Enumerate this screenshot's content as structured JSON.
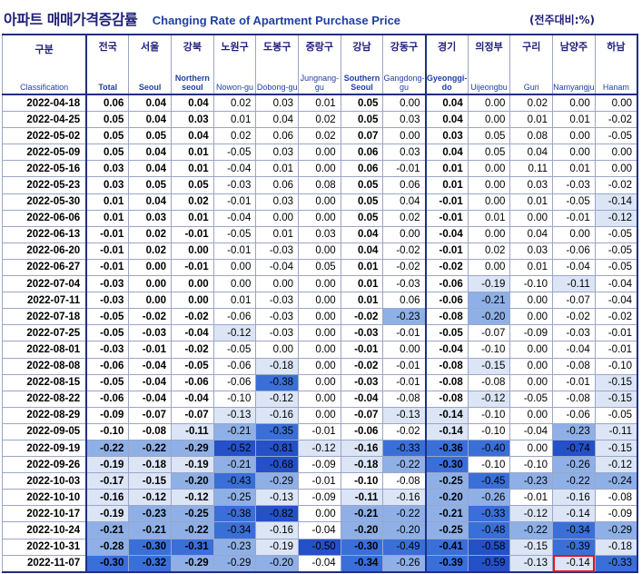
{
  "title_ko": "아파트 매매가격증감률",
  "title_en": "Changing Rate of Apartment Purchase Price",
  "unit": "(전주대비:%)",
  "chart_data": {
    "type": "table",
    "columns": [
      {
        "ko": "구분",
        "en": "Classification"
      },
      {
        "ko": "전국",
        "en": "Total"
      },
      {
        "ko": "서울",
        "en": "Seoul"
      },
      {
        "ko": "강북",
        "en": "Northern seoul"
      },
      {
        "ko": "노원구",
        "en": "Nowon-gu"
      },
      {
        "ko": "도봉구",
        "en": "Dobong-gu"
      },
      {
        "ko": "중랑구",
        "en": "Jungnang-gu"
      },
      {
        "ko": "강남",
        "en": "Southern Seoul"
      },
      {
        "ko": "강동구",
        "en": "Gangdong-gu"
      },
      {
        "ko": "경기",
        "en": "Gyeonggi-do"
      },
      {
        "ko": "의정부",
        "en": "Uijeongbu"
      },
      {
        "ko": "구리",
        "en": "Guri"
      },
      {
        "ko": "남양주",
        "en": "Namyangju"
      },
      {
        "ko": "하남",
        "en": "Hanam"
      }
    ],
    "rows": [
      {
        "date": "2022-04-18",
        "values": [
          "0.06",
          "0.04",
          "0.04",
          "0.02",
          "0.03",
          "0.01",
          "0.05",
          "0.00",
          "0.04",
          "0.00",
          "0.02",
          "0.00",
          "0.00"
        ]
      },
      {
        "date": "2022-04-25",
        "values": [
          "0.05",
          "0.04",
          "0.03",
          "0.01",
          "0.04",
          "0.02",
          "0.05",
          "0.03",
          "0.04",
          "0.00",
          "0.01",
          "0.01",
          "-0.02"
        ]
      },
      {
        "date": "2022-05-02",
        "values": [
          "0.05",
          "0.05",
          "0.04",
          "0.02",
          "0.06",
          "0.02",
          "0.07",
          "0.00",
          "0.03",
          "0.05",
          "0.08",
          "0.00",
          "-0.05"
        ]
      },
      {
        "date": "2022-05-09",
        "values": [
          "0.05",
          "0.04",
          "0.01",
          "-0.05",
          "0.03",
          "0.00",
          "0.06",
          "0.03",
          "0.04",
          "0.05",
          "0.04",
          "0.00",
          "0.00"
        ]
      },
      {
        "date": "2022-05-16",
        "values": [
          "0.03",
          "0.04",
          "0.01",
          "-0.04",
          "0.01",
          "0.00",
          "0.06",
          "-0.01",
          "0.01",
          "0.00",
          "0.11",
          "0.01",
          "0.00"
        ]
      },
      {
        "date": "2022-05-23",
        "values": [
          "0.03",
          "0.05",
          "0.05",
          "-0.03",
          "0.06",
          "0.08",
          "0.05",
          "0.06",
          "0.01",
          "0.00",
          "0.03",
          "-0.03",
          "-0.02"
        ]
      },
      {
        "date": "2022-05-30",
        "values": [
          "0.01",
          "0.04",
          "0.02",
          "-0.01",
          "0.03",
          "0.00",
          "0.05",
          "0.04",
          "-0.01",
          "0.00",
          "0.01",
          "-0.05",
          "-0.14"
        ]
      },
      {
        "date": "2022-06-06",
        "values": [
          "0.01",
          "0.03",
          "0.01",
          "-0.04",
          "0.00",
          "0.00",
          "0.05",
          "0.02",
          "-0.01",
          "0.01",
          "0.00",
          "-0.01",
          "-0.12"
        ]
      },
      {
        "date": "2022-06-13",
        "values": [
          "-0.01",
          "0.02",
          "-0.01",
          "-0.05",
          "0.01",
          "0.03",
          "0.04",
          "0.00",
          "-0.04",
          "0.00",
          "0.04",
          "0.00",
          "-0.05"
        ]
      },
      {
        "date": "2022-06-20",
        "values": [
          "-0.01",
          "0.02",
          "0.00",
          "-0.01",
          "-0.03",
          "0.00",
          "0.04",
          "-0.02",
          "-0.01",
          "0.02",
          "0.03",
          "-0.06",
          "-0.05"
        ]
      },
      {
        "date": "2022-06-27",
        "values": [
          "-0.01",
          "0.00",
          "-0.01",
          "0.00",
          "-0.04",
          "0.05",
          "0.01",
          "-0.02",
          "-0.02",
          "0.00",
          "0.01",
          "-0.04",
          "-0.05"
        ]
      },
      {
        "date": "2022-07-04",
        "values": [
          "-0.03",
          "0.00",
          "0.00",
          "0.00",
          "0.00",
          "0.00",
          "0.01",
          "-0.03",
          "-0.06",
          "-0.19",
          "-0.10",
          "-0.11",
          "-0.04"
        ]
      },
      {
        "date": "2022-07-11",
        "values": [
          "-0.03",
          "0.00",
          "0.00",
          "0.01",
          "-0.03",
          "0.00",
          "0.01",
          "0.06",
          "-0.06",
          "-0.21",
          "0.00",
          "-0.07",
          "-0.04"
        ]
      },
      {
        "date": "2022-07-18",
        "values": [
          "-0.05",
          "-0.02",
          "-0.02",
          "-0.06",
          "-0.03",
          "0.00",
          "-0.02",
          "-0.23",
          "-0.08",
          "-0.20",
          "0.00",
          "-0.02",
          "-0.02"
        ]
      },
      {
        "date": "2022-07-25",
        "values": [
          "-0.05",
          "-0.03",
          "-0.04",
          "-0.12",
          "-0.03",
          "0.00",
          "-0.03",
          "-0.01",
          "-0.05",
          "-0.07",
          "-0.09",
          "-0.03",
          "-0.01"
        ]
      },
      {
        "date": "2022-08-01",
        "values": [
          "-0.03",
          "-0.01",
          "-0.02",
          "-0.05",
          "0.00",
          "0.00",
          "-0.01",
          "0.00",
          "-0.04",
          "-0.10",
          "0.00",
          "-0.04",
          "-0.01"
        ]
      },
      {
        "date": "2022-08-08",
        "values": [
          "-0.06",
          "-0.04",
          "-0.05",
          "-0.06",
          "-0.18",
          "0.00",
          "-0.02",
          "-0.01",
          "-0.08",
          "-0.15",
          "0.00",
          "-0.08",
          "-0.10"
        ]
      },
      {
        "date": "2022-08-15",
        "values": [
          "-0.05",
          "-0.04",
          "-0.06",
          "-0.06",
          "-0.38",
          "0.00",
          "-0.03",
          "-0.01",
          "-0.08",
          "-0.08",
          "0.00",
          "-0.01",
          "-0.15"
        ]
      },
      {
        "date": "2022-08-22",
        "values": [
          "-0.06",
          "-0.04",
          "-0.04",
          "-0.10",
          "-0.12",
          "0.00",
          "-0.04",
          "-0.08",
          "-0.08",
          "-0.12",
          "-0.05",
          "-0.08",
          "-0.15"
        ]
      },
      {
        "date": "2022-08-29",
        "values": [
          "-0.09",
          "-0.07",
          "-0.07",
          "-0.13",
          "-0.16",
          "0.00",
          "-0.07",
          "-0.13",
          "-0.14",
          "-0.10",
          "0.00",
          "-0.06",
          "-0.05"
        ]
      },
      {
        "date": "2022-09-05",
        "values": [
          "-0.10",
          "-0.08",
          "-0.11",
          "-0.21",
          "-0.35",
          "-0.01",
          "-0.06",
          "-0.02",
          "-0.14",
          "-0.10",
          "-0.04",
          "-0.23",
          "-0.11"
        ]
      },
      {
        "date": "2022-09-19",
        "values": [
          "-0.22",
          "-0.22",
          "-0.29",
          "-0.52",
          "-0.81",
          "-0.12",
          "-0.16",
          "-0.33",
          "-0.36",
          "-0.40",
          "0.00",
          "-0.74",
          "-0.15"
        ]
      },
      {
        "date": "2022-09-26",
        "values": [
          "-0.19",
          "-0.18",
          "-0.19",
          "-0.21",
          "-0.68",
          "-0.09",
          "-0.18",
          "-0.22",
          "-0.30",
          "-0.10",
          "-0.10",
          "-0.26",
          "-0.12"
        ]
      },
      {
        "date": "2022-10-03",
        "values": [
          "-0.17",
          "-0.15",
          "-0.20",
          "-0.43",
          "-0.29",
          "-0.01",
          "-0.10",
          "-0.08",
          "-0.25",
          "-0.45",
          "-0.23",
          "-0.22",
          "-0.24"
        ]
      },
      {
        "date": "2022-10-10",
        "values": [
          "-0.16",
          "-0.12",
          "-0.12",
          "-0.25",
          "-0.13",
          "-0.09",
          "-0.11",
          "-0.16",
          "-0.20",
          "-0.26",
          "-0.01",
          "-0.16",
          "-0.08"
        ]
      },
      {
        "date": "2022-10-17",
        "values": [
          "-0.19",
          "-0.23",
          "-0.25",
          "-0.38",
          "-0.82",
          "0.00",
          "-0.21",
          "-0.22",
          "-0.21",
          "-0.33",
          "-0.12",
          "-0.14",
          "-0.09"
        ]
      },
      {
        "date": "2022-10-24",
        "values": [
          "-0.21",
          "-0.21",
          "-0.22",
          "-0.34",
          "-0.16",
          "-0.04",
          "-0.20",
          "-0.20",
          "-0.25",
          "-0.48",
          "-0.22",
          "-0.34",
          "-0.29"
        ]
      },
      {
        "date": "2022-10-31",
        "values": [
          "-0.28",
          "-0.30",
          "-0.31",
          "-0.23",
          "-0.19",
          "-0.50",
          "-0.30",
          "-0.49",
          "-0.41",
          "-0.58",
          "-0.15",
          "-0.39",
          "-0.18"
        ]
      },
      {
        "date": "2022-11-07",
        "values": [
          "-0.30",
          "-0.32",
          "-0.29",
          "-0.29",
          "-0.20",
          "-0.04",
          "-0.34",
          "-0.26",
          "-0.39",
          "-0.59",
          "-0.13",
          "-0.14",
          "-0.33"
        ]
      }
    ],
    "bold_columns": [
      0,
      1,
      2,
      6,
      8
    ],
    "highlight_cell": {
      "row": 28,
      "col": 11
    },
    "color_scale": {
      "zero_and_positive": "#ffffff",
      "light": "#dbe5f5",
      "mid": "#8fb0e6",
      "strong": "#3a6fd8",
      "darkest": "#2450c8"
    }
  }
}
